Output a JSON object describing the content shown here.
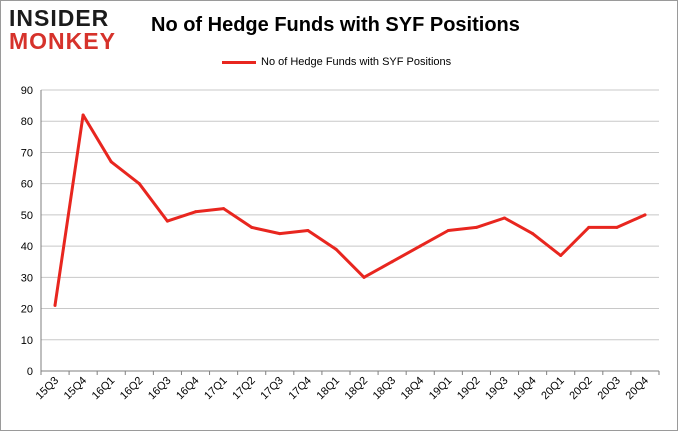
{
  "logo": {
    "line1": "INSIDER",
    "line2": "MONKEY"
  },
  "chart_data": {
    "type": "line",
    "title": "No of Hedge Funds with SYF Positions",
    "categories": [
      "15Q3",
      "15Q4",
      "16Q1",
      "16Q2",
      "16Q3",
      "16Q4",
      "17Q1",
      "17Q2",
      "17Q3",
      "17Q4",
      "18Q1",
      "18Q2",
      "18Q3",
      "18Q4",
      "19Q1",
      "19Q2",
      "19Q3",
      "19Q4",
      "20Q1",
      "20Q2",
      "20Q3",
      "20Q4"
    ],
    "series": [
      {
        "name": "No of Hedge Funds with SYF Positions",
        "color": "#e8261f",
        "values": [
          21,
          82,
          67,
          60,
          48,
          51,
          52,
          46,
          44,
          45,
          39,
          30,
          35,
          40,
          45,
          46,
          49,
          44,
          37,
          46,
          46,
          50
        ]
      }
    ],
    "ylim": [
      0,
      90
    ],
    "yticks": [
      0,
      10,
      20,
      30,
      40,
      50,
      60,
      70,
      80,
      90
    ],
    "grid": true,
    "legend_position": "top-center"
  }
}
